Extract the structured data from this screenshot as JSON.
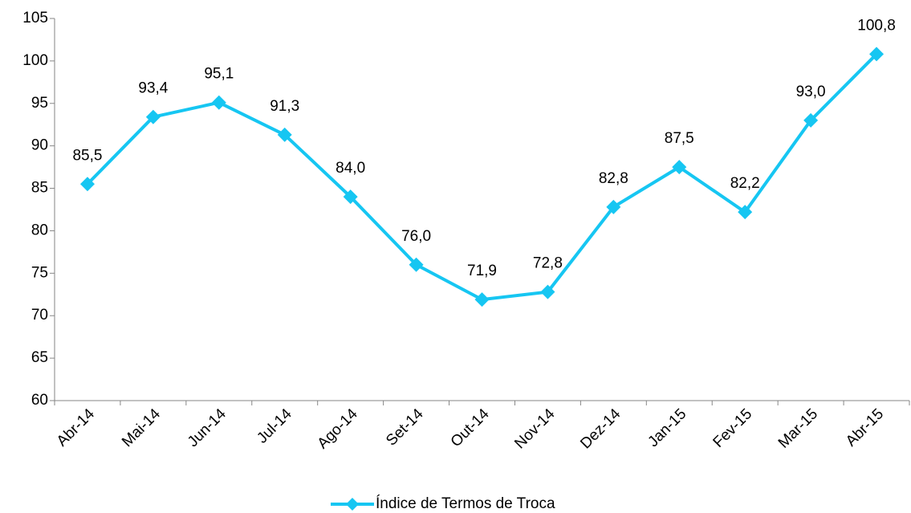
{
  "chart_data": {
    "type": "line",
    "categories": [
      "Abr-14",
      "Mai-14",
      "Jun-14",
      "Jul-14",
      "Ago-14",
      "Set-14",
      "Out-14",
      "Nov-14",
      "Dez-14",
      "Jan-15",
      "Fev-15",
      "Mar-15",
      "Abr-15"
    ],
    "series": [
      {
        "name": "Índice de Termos de Troca",
        "color": "#16c6f2",
        "values": [
          85.5,
          93.4,
          95.1,
          91.3,
          84.0,
          76.0,
          71.9,
          72.8,
          82.8,
          87.5,
          82.2,
          93.0,
          100.8
        ],
        "value_labels": [
          "85,5",
          "93,4",
          "95,1",
          "91,3",
          "84,0",
          "76,0",
          "71,9",
          "72,8",
          "82,8",
          "87,5",
          "82,2",
          "93,0",
          "100,8"
        ]
      }
    ],
    "ylim": [
      60,
      105
    ],
    "yticks": [
      60,
      65,
      70,
      75,
      80,
      85,
      90,
      95,
      100,
      105
    ],
    "grid": false,
    "legend": "bottom"
  }
}
